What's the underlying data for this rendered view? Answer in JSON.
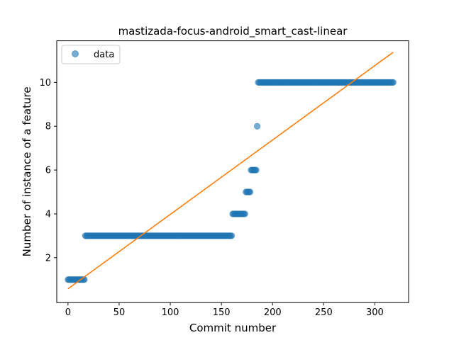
{
  "chart_data": {
    "type": "scatter",
    "title": "mastizada-focus-android_smart_cast-linear",
    "xlabel": "Commit number",
    "ylabel": "Number of instance of a feature",
    "xlim": [
      -11,
      333
    ],
    "ylim": [
      -0.05,
      11.9
    ],
    "xticks": [
      0,
      50,
      100,
      150,
      200,
      250,
      300
    ],
    "yticks": [
      2,
      4,
      6,
      8,
      10
    ],
    "grid": false,
    "legend": {
      "position": "top-left",
      "entries": [
        "data"
      ]
    },
    "colors": {
      "data": "#1f77b4",
      "fit": "#ff7f0e"
    },
    "series": [
      {
        "name": "data",
        "kind": "points",
        "segments": [
          {
            "x_start": 0,
            "x_end": 16,
            "y": 1
          },
          {
            "x_start": 17,
            "x_end": 160,
            "y": 3
          },
          {
            "x_start": 161,
            "x_end": 173,
            "y": 4
          },
          {
            "x_start": 174,
            "x_end": 178,
            "y": 5
          },
          {
            "x_start": 179,
            "x_end": 184,
            "y": 6
          },
          {
            "x_start": 185,
            "x_end": 185,
            "y": 8
          },
          {
            "x_start": 186,
            "x_end": 318,
            "y": 10
          }
        ]
      },
      {
        "kind": "line",
        "x": [
          0,
          318
        ],
        "y": [
          0.58,
          11.38
        ]
      }
    ]
  }
}
